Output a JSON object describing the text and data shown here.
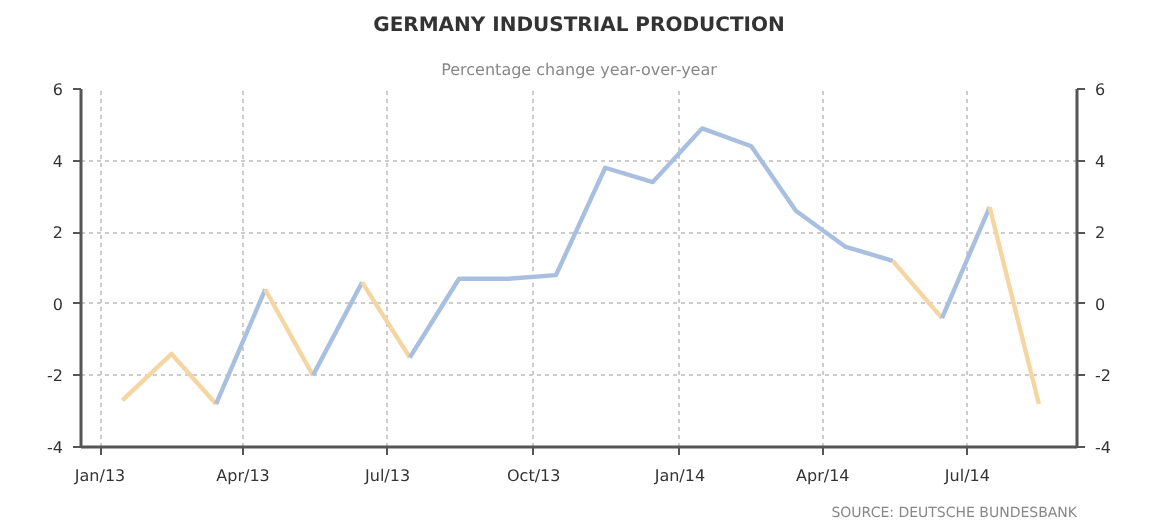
{
  "chart_data": {
    "type": "line",
    "title": "GERMANY INDUSTRIAL PRODUCTION",
    "subtitle": "Percentage change year-over-year",
    "series": [
      {
        "color": "#f5d6a3",
        "x": [
          "2013-01-15",
          "2013-02-15",
          "2013-03-15"
        ],
        "values": [
          -2.7,
          -1.4,
          -2.8
        ]
      },
      {
        "color": "#a9bfdf",
        "x": [
          "2013-03-15",
          "2013-04-15"
        ],
        "values": [
          -2.8,
          0.4
        ]
      },
      {
        "color": "#f5d6a3",
        "x": [
          "2013-04-15",
          "2013-05-15"
        ],
        "values": [
          0.4,
          -2.0
        ]
      },
      {
        "color": "#a9bfdf",
        "x": [
          "2013-05-15",
          "2013-06-15"
        ],
        "values": [
          -2.0,
          0.6
        ]
      },
      {
        "color": "#f5d6a3",
        "x": [
          "2013-06-15",
          "2013-07-15"
        ],
        "values": [
          0.6,
          -1.5
        ]
      },
      {
        "color": "#a9bfdf",
        "x": [
          "2013-07-15",
          "2013-08-15",
          "2013-09-15",
          "2013-10-15",
          "2013-11-15",
          "2013-12-15",
          "2014-01-15",
          "2014-02-15",
          "2014-03-15",
          "2014-04-15",
          "2014-05-15"
        ],
        "values": [
          -1.5,
          0.7,
          0.7,
          0.8,
          3.8,
          3.4,
          4.9,
          4.4,
          2.6,
          1.6,
          1.2
        ]
      },
      {
        "color": "#f5d6a3",
        "x": [
          "2014-05-15",
          "2014-06-15"
        ],
        "values": [
          1.2,
          -0.4
        ]
      },
      {
        "color": "#a9bfdf",
        "x": [
          "2014-06-15",
          "2014-07-15"
        ],
        "values": [
          -0.4,
          2.7
        ]
      },
      {
        "color": "#f5d6a3",
        "x": [
          "2014-07-15",
          "2014-08-15"
        ],
        "values": [
          2.7,
          -2.8
        ]
      }
    ],
    "xlim": [
      "2012-12-20",
      "2014-09-08"
    ],
    "xticks": [
      {
        "value": "2013-01-01",
        "label": "Jan/13"
      },
      {
        "value": "2013-04-01",
        "label": "Apr/13"
      },
      {
        "value": "2013-07-01",
        "label": "Jul/13"
      },
      {
        "value": "2013-10-01",
        "label": "Oct/13"
      },
      {
        "value": "2014-01-01",
        "label": "Jan/14"
      },
      {
        "value": "2014-04-01",
        "label": "Apr/14"
      },
      {
        "value": "2014-07-01",
        "label": "Jul/14"
      }
    ],
    "ylim": [
      -4,
      6
    ],
    "yticks": [
      -4,
      -2,
      0,
      2,
      4,
      6
    ],
    "y2lim": [
      -4,
      6
    ],
    "y2ticks": [
      -4,
      -2,
      0,
      2,
      4,
      6
    ],
    "grid": true,
    "marker": "none",
    "line_style": "solid",
    "annotations": [
      "SOURCE: DEUTSCHE BUNDESBANK"
    ]
  }
}
